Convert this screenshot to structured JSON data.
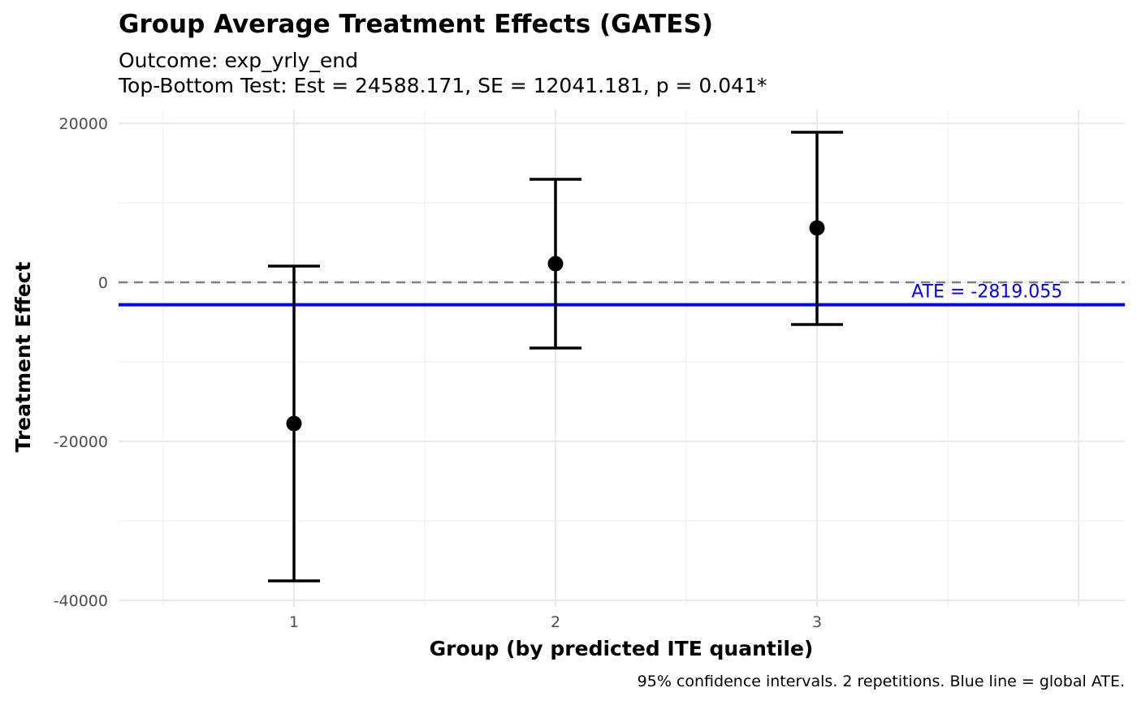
{
  "chart_data": {
    "type": "errorbar",
    "title": "Group Average Treatment Effects (GATES)",
    "subtitle_line1": "Outcome: exp_yrly_end",
    "subtitle_line2": "Top-Bottom Test: Est = 24588.171, SE = 12041.181, p = 0.041*",
    "xlabel": "Group (by predicted ITE quantile)",
    "ylabel": "Treatment Effect",
    "caption": "95% confidence intervals. 2 repetitions. Blue line = global ATE.",
    "xlim": [
      0.33,
      4.18
    ],
    "ylim": [
      -40800,
      20000
    ],
    "x_ticks": [
      1,
      2,
      3
    ],
    "x_tick_labels": [
      "1",
      "2",
      "3"
    ],
    "y_ticks": [
      20000,
      0,
      -20000,
      -40000
    ],
    "y_tick_labels": [
      "20000",
      "0",
      "-20000",
      "-40000"
    ],
    "grid": true,
    "points": [
      {
        "group": 1,
        "estimate": -17760,
        "ci_low": -37550,
        "ci_high": 2040
      },
      {
        "group": 2,
        "estimate": 2350,
        "ci_low": -8270,
        "ci_high": 12960
      },
      {
        "group": 3,
        "estimate": 6840,
        "ci_low": -5310,
        "ci_high": 18880
      }
    ],
    "reference_line": {
      "y": 0,
      "style": "dashed",
      "color": "#808080"
    },
    "ate_line": {
      "y": -2819.055,
      "color": "#0000ff",
      "label": "ATE = -2819.055",
      "label_x": 3.65
    }
  }
}
